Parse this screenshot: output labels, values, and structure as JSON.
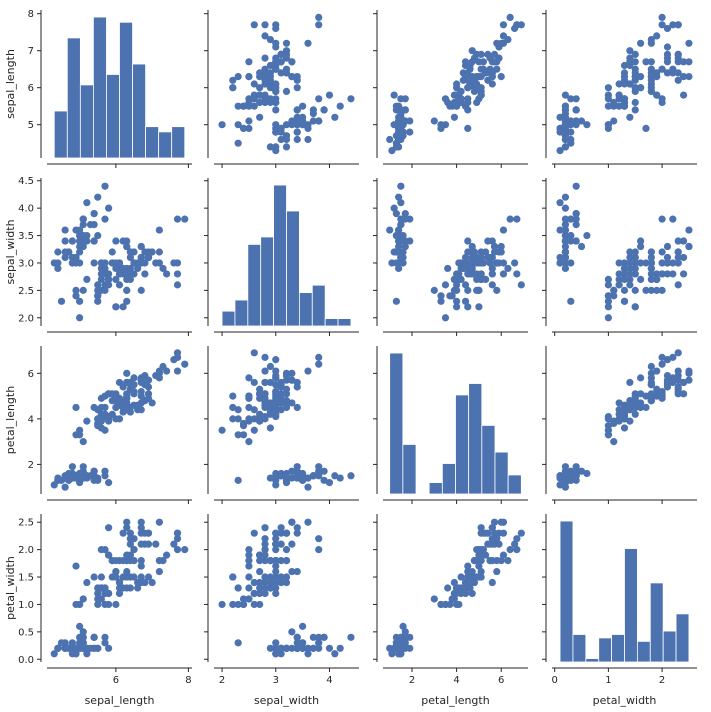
{
  "chart_data": {
    "type": "scatter",
    "subtype": "pairplot",
    "grid": false,
    "color": "#4c72b0",
    "variables": [
      "sepal_length",
      "sepal_width",
      "petal_length",
      "petal_width"
    ],
    "axes": {
      "sepal_length": {
        "label": "sepal_length",
        "range": [
          4.1,
          8.1
        ],
        "y_ticks": [
          5,
          6,
          7,
          8
        ],
        "x_ticks": [
          6,
          8
        ]
      },
      "sepal_width": {
        "label": "sepal_width",
        "range": [
          1.85,
          4.55
        ],
        "y_ticks": [
          2.0,
          2.5,
          3.0,
          3.5,
          4.0,
          4.5
        ],
        "x_ticks": [
          2,
          3,
          4
        ]
      },
      "petal_length": {
        "label": "petal_length",
        "range": [
          0.7,
          7.2
        ],
        "y_ticks": [
          2,
          4,
          6
        ],
        "x_ticks": [
          2,
          4,
          6
        ]
      },
      "petal_width": {
        "label": "petal_width",
        "range": [
          -0.05,
          2.65
        ],
        "y_ticks": [
          0.0,
          0.5,
          1.0,
          1.5,
          2.0,
          2.5
        ],
        "x_ticks": [
          0,
          1,
          2
        ]
      }
    },
    "histograms": {
      "sepal_length": {
        "edges": [
          4.3,
          4.66,
          5.02,
          5.38,
          5.74,
          6.1,
          6.46,
          6.82,
          7.18,
          7.54,
          7.9
        ],
        "counts": [
          9,
          23,
          14,
          27,
          16,
          26,
          18,
          6,
          5,
          6
        ]
      },
      "sepal_width": {
        "edges": [
          2.0,
          2.24,
          2.48,
          2.72,
          2.96,
          3.2,
          3.44,
          3.68,
          3.92,
          4.16,
          4.4
        ],
        "counts": [
          4,
          7,
          22,
          24,
          38,
          31,
          9,
          11,
          2,
          2
        ]
      },
      "petal_length": {
        "edges": [
          1.0,
          1.59,
          2.18,
          2.77,
          3.36,
          3.95,
          4.54,
          5.13,
          5.72,
          6.31,
          6.9
        ],
        "counts": [
          37,
          13,
          0,
          3,
          8,
          26,
          29,
          18,
          11,
          5
        ]
      },
      "petal_width": {
        "edges": [
          0.1,
          0.34,
          0.58,
          0.82,
          1.06,
          1.3,
          1.54,
          1.78,
          2.02,
          2.26,
          2.5
        ],
        "counts": [
          41,
          8,
          1,
          7,
          8,
          33,
          6,
          23,
          9,
          14
        ]
      }
    },
    "points": [
      [
        5.1,
        3.5,
        1.4,
        0.2
      ],
      [
        4.9,
        3.0,
        1.4,
        0.2
      ],
      [
        4.7,
        3.2,
        1.3,
        0.2
      ],
      [
        4.6,
        3.1,
        1.5,
        0.2
      ],
      [
        5.0,
        3.6,
        1.4,
        0.2
      ],
      [
        5.4,
        3.9,
        1.7,
        0.4
      ],
      [
        4.6,
        3.4,
        1.4,
        0.3
      ],
      [
        5.0,
        3.4,
        1.5,
        0.2
      ],
      [
        4.4,
        2.9,
        1.4,
        0.2
      ],
      [
        4.9,
        3.1,
        1.5,
        0.1
      ],
      [
        5.4,
        3.7,
        1.5,
        0.2
      ],
      [
        4.8,
        3.4,
        1.6,
        0.2
      ],
      [
        4.8,
        3.0,
        1.4,
        0.1
      ],
      [
        4.3,
        3.0,
        1.1,
        0.1
      ],
      [
        5.8,
        4.0,
        1.2,
        0.2
      ],
      [
        5.7,
        4.4,
        1.5,
        0.4
      ],
      [
        5.4,
        3.9,
        1.3,
        0.4
      ],
      [
        5.1,
        3.5,
        1.4,
        0.3
      ],
      [
        5.7,
        3.8,
        1.7,
        0.3
      ],
      [
        5.1,
        3.8,
        1.5,
        0.3
      ],
      [
        5.4,
        3.4,
        1.7,
        0.2
      ],
      [
        5.1,
        3.7,
        1.5,
        0.4
      ],
      [
        4.6,
        3.6,
        1.0,
        0.2
      ],
      [
        5.1,
        3.3,
        1.7,
        0.5
      ],
      [
        4.8,
        3.4,
        1.9,
        0.2
      ],
      [
        5.0,
        3.0,
        1.6,
        0.2
      ],
      [
        5.0,
        3.4,
        1.6,
        0.4
      ],
      [
        5.2,
        3.5,
        1.5,
        0.2
      ],
      [
        5.2,
        3.4,
        1.4,
        0.2
      ],
      [
        4.7,
        3.2,
        1.6,
        0.2
      ],
      [
        4.8,
        3.1,
        1.6,
        0.2
      ],
      [
        5.4,
        3.4,
        1.5,
        0.4
      ],
      [
        5.2,
        4.1,
        1.5,
        0.1
      ],
      [
        5.5,
        4.2,
        1.4,
        0.2
      ],
      [
        4.9,
        3.1,
        1.5,
        0.2
      ],
      [
        5.0,
        3.2,
        1.2,
        0.2
      ],
      [
        5.5,
        3.5,
        1.3,
        0.2
      ],
      [
        4.9,
        3.6,
        1.4,
        0.1
      ],
      [
        4.4,
        3.0,
        1.3,
        0.2
      ],
      [
        5.1,
        3.4,
        1.5,
        0.2
      ],
      [
        5.0,
        3.5,
        1.3,
        0.3
      ],
      [
        4.5,
        2.3,
        1.3,
        0.3
      ],
      [
        4.4,
        3.2,
        1.3,
        0.2
      ],
      [
        5.0,
        3.5,
        1.6,
        0.6
      ],
      [
        5.1,
        3.8,
        1.9,
        0.4
      ],
      [
        4.8,
        3.0,
        1.4,
        0.3
      ],
      [
        5.1,
        3.8,
        1.6,
        0.2
      ],
      [
        4.6,
        3.2,
        1.4,
        0.2
      ],
      [
        5.3,
        3.7,
        1.5,
        0.2
      ],
      [
        5.0,
        3.3,
        1.4,
        0.2
      ],
      [
        7.0,
        3.2,
        4.7,
        1.4
      ],
      [
        6.4,
        3.2,
        4.5,
        1.5
      ],
      [
        6.9,
        3.1,
        4.9,
        1.5
      ],
      [
        5.5,
        2.3,
        4.0,
        1.3
      ],
      [
        6.5,
        2.8,
        4.6,
        1.5
      ],
      [
        5.7,
        2.8,
        4.5,
        1.3
      ],
      [
        6.3,
        3.3,
        4.7,
        1.6
      ],
      [
        4.9,
        2.4,
        3.3,
        1.0
      ],
      [
        6.6,
        2.9,
        4.6,
        1.3
      ],
      [
        5.2,
        2.7,
        3.9,
        1.4
      ],
      [
        5.0,
        2.0,
        3.5,
        1.0
      ],
      [
        5.9,
        3.0,
        4.2,
        1.5
      ],
      [
        6.0,
        2.2,
        4.0,
        1.0
      ],
      [
        6.1,
        2.9,
        4.7,
        1.4
      ],
      [
        5.6,
        2.9,
        3.6,
        1.3
      ],
      [
        6.7,
        3.1,
        4.4,
        1.4
      ],
      [
        5.6,
        3.0,
        4.5,
        1.5
      ],
      [
        5.8,
        2.7,
        4.1,
        1.0
      ],
      [
        6.2,
        2.2,
        4.5,
        1.5
      ],
      [
        5.6,
        2.5,
        3.9,
        1.1
      ],
      [
        5.9,
        3.2,
        4.8,
        1.8
      ],
      [
        6.1,
        2.8,
        4.0,
        1.3
      ],
      [
        6.3,
        2.5,
        4.9,
        1.5
      ],
      [
        6.1,
        2.8,
        4.7,
        1.2
      ],
      [
        6.4,
        2.9,
        4.3,
        1.3
      ],
      [
        6.6,
        3.0,
        4.4,
        1.4
      ],
      [
        6.8,
        2.8,
        4.8,
        1.4
      ],
      [
        6.7,
        3.0,
        5.0,
        1.7
      ],
      [
        6.0,
        2.9,
        4.5,
        1.5
      ],
      [
        5.7,
        2.6,
        3.5,
        1.0
      ],
      [
        5.5,
        2.4,
        3.8,
        1.1
      ],
      [
        5.5,
        2.4,
        3.7,
        1.0
      ],
      [
        5.8,
        2.7,
        3.9,
        1.2
      ],
      [
        6.0,
        2.7,
        5.1,
        1.6
      ],
      [
        5.4,
        3.0,
        4.5,
        1.5
      ],
      [
        6.0,
        3.4,
        4.5,
        1.6
      ],
      [
        6.7,
        3.1,
        4.7,
        1.5
      ],
      [
        6.3,
        2.3,
        4.4,
        1.3
      ],
      [
        5.6,
        3.0,
        4.1,
        1.3
      ],
      [
        5.5,
        2.5,
        4.0,
        1.3
      ],
      [
        5.5,
        2.6,
        4.4,
        1.2
      ],
      [
        6.1,
        3.0,
        4.6,
        1.4
      ],
      [
        5.8,
        2.6,
        4.0,
        1.2
      ],
      [
        5.0,
        2.3,
        3.3,
        1.0
      ],
      [
        5.6,
        2.7,
        4.2,
        1.3
      ],
      [
        5.7,
        3.0,
        4.2,
        1.2
      ],
      [
        5.7,
        2.9,
        4.2,
        1.3
      ],
      [
        6.2,
        2.9,
        4.3,
        1.3
      ],
      [
        5.1,
        2.5,
        3.0,
        1.1
      ],
      [
        5.7,
        2.8,
        4.1,
        1.3
      ],
      [
        6.3,
        3.3,
        6.0,
        2.5
      ],
      [
        5.8,
        2.7,
        5.1,
        1.9
      ],
      [
        7.1,
        3.0,
        5.9,
        2.1
      ],
      [
        6.3,
        2.9,
        5.6,
        1.8
      ],
      [
        6.5,
        3.0,
        5.8,
        2.2
      ],
      [
        7.6,
        3.0,
        6.6,
        2.1
      ],
      [
        4.9,
        2.5,
        4.5,
        1.7
      ],
      [
        7.3,
        2.9,
        6.3,
        1.8
      ],
      [
        6.7,
        2.5,
        5.8,
        1.8
      ],
      [
        7.2,
        3.6,
        6.1,
        2.5
      ],
      [
        6.5,
        3.2,
        5.1,
        2.0
      ],
      [
        6.4,
        2.7,
        5.3,
        1.9
      ],
      [
        6.8,
        3.0,
        5.5,
        2.1
      ],
      [
        5.7,
        2.5,
        5.0,
        2.0
      ],
      [
        5.8,
        2.8,
        5.1,
        2.4
      ],
      [
        6.4,
        3.2,
        5.3,
        2.3
      ],
      [
        6.5,
        3.0,
        5.5,
        1.8
      ],
      [
        7.7,
        3.8,
        6.7,
        2.2
      ],
      [
        7.7,
        2.6,
        6.9,
        2.3
      ],
      [
        6.0,
        2.2,
        5.0,
        1.5
      ],
      [
        6.9,
        3.2,
        5.7,
        2.3
      ],
      [
        5.6,
        2.8,
        4.9,
        2.0
      ],
      [
        7.7,
        2.8,
        6.7,
        2.0
      ],
      [
        6.3,
        2.7,
        4.9,
        1.8
      ],
      [
        6.7,
        3.3,
        5.7,
        2.1
      ],
      [
        7.2,
        3.2,
        6.0,
        1.8
      ],
      [
        6.2,
        2.8,
        4.8,
        1.8
      ],
      [
        6.1,
        3.0,
        4.9,
        1.8
      ],
      [
        6.4,
        2.8,
        5.6,
        2.1
      ],
      [
        7.2,
        3.0,
        5.8,
        1.6
      ],
      [
        7.4,
        2.8,
        6.1,
        1.9
      ],
      [
        7.9,
        3.8,
        6.4,
        2.0
      ],
      [
        6.4,
        2.8,
        5.6,
        2.2
      ],
      [
        6.3,
        2.8,
        5.1,
        1.5
      ],
      [
        6.1,
        2.6,
        5.6,
        1.4
      ],
      [
        7.7,
        3.0,
        6.1,
        2.3
      ],
      [
        6.3,
        3.4,
        5.6,
        2.4
      ],
      [
        6.4,
        3.1,
        5.5,
        1.8
      ],
      [
        6.0,
        3.0,
        4.8,
        1.8
      ],
      [
        6.9,
        3.1,
        5.4,
        2.1
      ],
      [
        6.7,
        3.1,
        5.6,
        2.4
      ],
      [
        6.9,
        3.1,
        5.1,
        2.3
      ],
      [
        5.8,
        2.7,
        5.1,
        1.9
      ],
      [
        6.8,
        3.2,
        5.9,
        2.3
      ],
      [
        6.7,
        3.3,
        5.7,
        2.5
      ],
      [
        6.7,
        3.0,
        5.2,
        2.3
      ],
      [
        6.3,
        2.5,
        5.0,
        1.9
      ],
      [
        6.5,
        3.0,
        5.2,
        2.0
      ],
      [
        6.2,
        3.4,
        5.4,
        2.3
      ],
      [
        5.9,
        3.0,
        5.1,
        1.8
      ]
    ]
  }
}
